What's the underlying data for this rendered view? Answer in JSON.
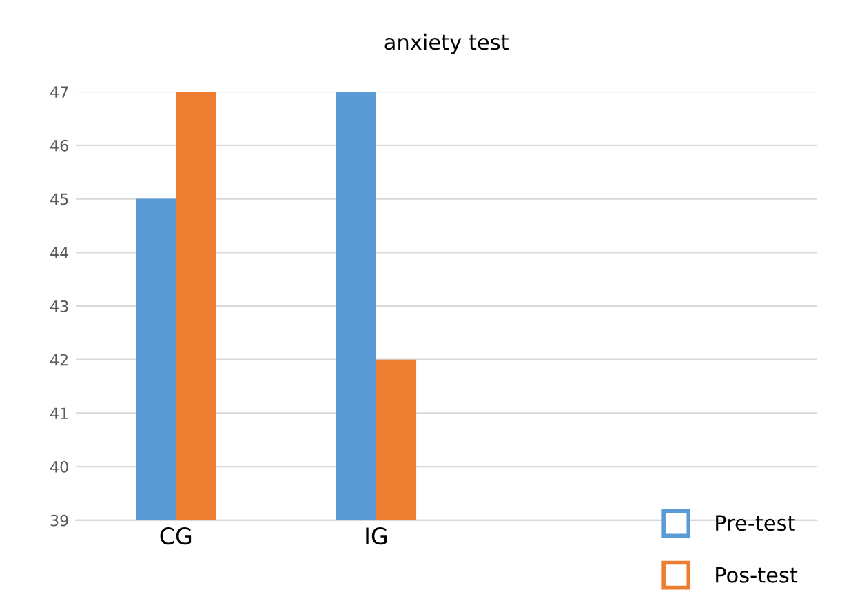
{
  "chart_data": {
    "type": "bar",
    "title": "anxiety test",
    "categories": [
      "CG",
      "IG"
    ],
    "series": [
      {
        "name": "Pre-test",
        "color": "#5b9bd5",
        "values": [
          45,
          47
        ]
      },
      {
        "name": "Pos-test",
        "color": "#ed7d31",
        "values": [
          47,
          42
        ]
      }
    ],
    "ylim": [
      39,
      47
    ],
    "yticks": [
      39,
      40,
      41,
      42,
      43,
      44,
      45,
      46,
      47
    ],
    "grid": "y",
    "legend": "bottom right"
  }
}
